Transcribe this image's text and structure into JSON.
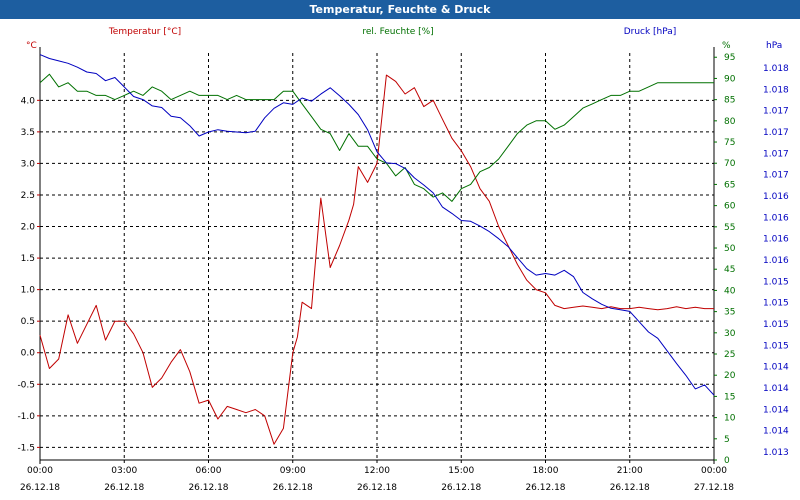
{
  "window": {
    "title": "Temperatur, Feuchte & Druck"
  },
  "colors": {
    "temperature": "#c00000",
    "humidity": "#007000",
    "pressure": "#0000c0",
    "grid": "#000000",
    "titlebar": "#1d5ea0"
  },
  "chart_data": {
    "type": "line",
    "title": "Temperatur, Feuchte & Druck",
    "grid": true,
    "x_ticks": [
      {
        "time": "00:00",
        "date": "26.12.18"
      },
      {
        "time": "03:00",
        "date": "26.12.18"
      },
      {
        "time": "06:00",
        "date": "26.12.18"
      },
      {
        "time": "09:00",
        "date": "26.12.18"
      },
      {
        "time": "12:00",
        "date": "26.12.18"
      },
      {
        "time": "15:00",
        "date": "26.12.18"
      },
      {
        "time": "18:00",
        "date": "26.12.18"
      },
      {
        "time": "21:00",
        "date": "26.12.18"
      },
      {
        "time": "00:00",
        "date": "27.12.18"
      }
    ],
    "xlim": [
      "26.12.18 00:00",
      "27.12.18 00:00"
    ],
    "axes": {
      "temperature": {
        "label": "Temperatur [°C]",
        "unit": "°C",
        "range": [
          -1.7,
          4.75
        ],
        "ticks": [
          "4.0",
          "3.5",
          "3.0",
          "2.5",
          "2.0",
          "1.5",
          "1.0",
          "0.5",
          "0.0",
          "-0.5",
          "-1.0",
          "-1.5"
        ]
      },
      "humidity": {
        "label": "rel. Feuchte [%]",
        "unit": "%",
        "range": [
          0,
          96
        ],
        "ticks": [
          "95",
          "90",
          "85",
          "80",
          "75",
          "70",
          "65",
          "60",
          "55",
          "50",
          "45",
          "40",
          "35",
          "30",
          "25",
          "20",
          "15",
          "10",
          "5",
          "0"
        ]
      },
      "pressure": {
        "label": "Druck [hPa]",
        "unit": "hPa",
        "range": [
          1013.0,
          1018.15
        ],
        "ticks": [
          "1.018",
          "1.018",
          "1.017",
          "1.017",
          "1.017",
          "1.017",
          "1.016",
          "1.016",
          "1.016",
          "1.016",
          "1.015",
          "1.015",
          "1.015",
          "1.015",
          "1.014",
          "1.014",
          "1.014",
          "1.014",
          "1.013"
        ]
      }
    },
    "series": [
      {
        "name": "Temperatur [°C]",
        "axis": "temperature",
        "x": [
          "00:00",
          "00:20",
          "00:40",
          "01:00",
          "01:20",
          "01:40",
          "02:00",
          "02:20",
          "02:40",
          "03:00",
          "03:20",
          "03:40",
          "04:00",
          "04:20",
          "04:40",
          "05:00",
          "05:20",
          "05:40",
          "06:00",
          "06:20",
          "06:40",
          "07:00",
          "07:20",
          "07:40",
          "08:00",
          "08:20",
          "08:40",
          "09:00",
          "09:10",
          "09:20",
          "09:40",
          "10:00",
          "10:20",
          "10:40",
          "11:00",
          "11:10",
          "11:20",
          "11:40",
          "12:00",
          "12:20",
          "12:40",
          "13:00",
          "13:20",
          "13:40",
          "14:00",
          "14:20",
          "14:40",
          "15:00",
          "15:20",
          "15:40",
          "16:00",
          "16:20",
          "16:40",
          "17:00",
          "17:20",
          "17:40",
          "18:00",
          "18:20",
          "18:40",
          "19:00",
          "19:20",
          "19:40",
          "20:00",
          "20:20",
          "20:40",
          "21:00",
          "21:20",
          "21:40",
          "22:00",
          "22:20",
          "22:40",
          "23:00",
          "23:20",
          "23:40",
          "24:00"
        ],
        "y": [
          0.28,
          -0.25,
          -0.1,
          0.6,
          0.15,
          0.45,
          0.75,
          0.2,
          0.5,
          0.5,
          0.3,
          0.0,
          -0.55,
          -0.4,
          -0.15,
          0.05,
          -0.3,
          -0.8,
          -0.75,
          -1.05,
          -0.85,
          -0.9,
          -0.95,
          -0.9,
          -1.0,
          -1.45,
          -1.2,
          0.0,
          0.25,
          0.8,
          0.7,
          2.45,
          1.35,
          1.7,
          2.1,
          2.35,
          2.95,
          2.7,
          3.0,
          4.4,
          4.3,
          4.1,
          4.2,
          3.9,
          4.0,
          3.7,
          3.4,
          3.2,
          2.95,
          2.6,
          2.4,
          2.0,
          1.7,
          1.4,
          1.15,
          1.0,
          0.95,
          0.75,
          0.7,
          0.72,
          0.74,
          0.72,
          0.7,
          0.73,
          0.7,
          0.7,
          0.72,
          0.7,
          0.68,
          0.7,
          0.73,
          0.7,
          0.72,
          0.7,
          0.7
        ]
      },
      {
        "name": "rel. Feuchte [%]",
        "axis": "humidity",
        "x": [
          "00:00",
          "00:20",
          "00:40",
          "01:00",
          "01:20",
          "01:40",
          "02:00",
          "02:20",
          "02:40",
          "03:00",
          "03:20",
          "03:40",
          "04:00",
          "04:20",
          "04:40",
          "05:00",
          "05:20",
          "05:40",
          "06:00",
          "06:20",
          "06:40",
          "07:00",
          "07:20",
          "07:40",
          "08:00",
          "08:20",
          "08:40",
          "09:00",
          "09:20",
          "09:40",
          "10:00",
          "10:20",
          "10:40",
          "11:00",
          "11:20",
          "11:40",
          "12:00",
          "12:20",
          "12:40",
          "13:00",
          "13:20",
          "13:40",
          "14:00",
          "14:20",
          "14:40",
          "15:00",
          "15:20",
          "15:40",
          "16:00",
          "16:20",
          "16:40",
          "17:00",
          "17:20",
          "17:40",
          "18:00",
          "18:20",
          "18:40",
          "19:00",
          "19:20",
          "19:40",
          "20:00",
          "20:20",
          "20:40",
          "21:00",
          "21:20",
          "21:40",
          "22:00",
          "22:20",
          "22:40",
          "23:00",
          "23:20",
          "23:40",
          "24:00"
        ],
        "y": [
          89,
          91,
          88,
          89,
          87,
          87,
          86,
          86,
          85,
          86,
          87,
          86,
          88,
          87,
          85,
          86,
          87,
          86,
          86,
          86,
          85,
          86,
          85,
          85,
          85,
          85,
          87,
          87,
          84,
          81,
          78,
          77,
          73,
          77,
          74,
          74,
          71,
          70,
          67,
          69,
          65,
          64,
          62,
          63,
          61,
          64,
          65,
          68,
          69,
          71,
          74,
          77,
          79,
          80,
          80,
          78,
          79,
          81,
          83,
          84,
          85,
          86,
          86,
          87,
          87,
          88,
          89,
          89,
          89,
          89,
          89,
          89,
          89
        ]
      },
      {
        "name": "Druck [hPa]",
        "axis": "pressure",
        "x": [
          "00:00",
          "00:20",
          "00:40",
          "01:00",
          "01:20",
          "01:40",
          "02:00",
          "02:20",
          "02:40",
          "03:00",
          "03:20",
          "03:40",
          "04:00",
          "04:20",
          "04:40",
          "05:00",
          "05:20",
          "05:40",
          "06:00",
          "06:20",
          "06:40",
          "07:00",
          "07:20",
          "07:40",
          "08:00",
          "08:20",
          "08:40",
          "09:00",
          "09:20",
          "09:40",
          "10:00",
          "10:20",
          "10:40",
          "11:00",
          "11:20",
          "11:40",
          "12:00",
          "12:20",
          "12:40",
          "13:00",
          "13:20",
          "13:40",
          "14:00",
          "14:20",
          "14:40",
          "15:00",
          "15:20",
          "15:40",
          "16:00",
          "16:20",
          "16:40",
          "17:00",
          "17:20",
          "17:40",
          "18:00",
          "18:20",
          "18:40",
          "19:00",
          "19:20",
          "19:40",
          "20:00",
          "20:20",
          "20:40",
          "21:00",
          "21:20",
          "21:40",
          "22:00",
          "22:20",
          "22:40",
          "23:00",
          "23:20",
          "23:40",
          "24:00"
        ],
        "y": [
          1018.13,
          1018.08,
          1018.05,
          1018.02,
          1017.97,
          1017.91,
          1017.89,
          1017.8,
          1017.84,
          1017.72,
          1017.6,
          1017.56,
          1017.48,
          1017.46,
          1017.35,
          1017.33,
          1017.23,
          1017.1,
          1017.15,
          1017.18,
          1017.16,
          1017.15,
          1017.14,
          1017.16,
          1017.33,
          1017.45,
          1017.52,
          1017.5,
          1017.58,
          1017.54,
          1017.63,
          1017.71,
          1017.61,
          1017.5,
          1017.37,
          1017.18,
          1016.9,
          1016.76,
          1016.75,
          1016.69,
          1016.57,
          1016.48,
          1016.38,
          1016.2,
          1016.12,
          1016.03,
          1016.02,
          1015.96,
          1015.89,
          1015.8,
          1015.7,
          1015.56,
          1015.42,
          1015.34,
          1015.36,
          1015.34,
          1015.4,
          1015.32,
          1015.12,
          1015.04,
          1014.97,
          1014.92,
          1014.9,
          1014.88,
          1014.75,
          1014.62,
          1014.54,
          1014.38,
          1014.22,
          1014.07,
          1013.9,
          1013.95,
          1013.82
        ]
      }
    ]
  }
}
